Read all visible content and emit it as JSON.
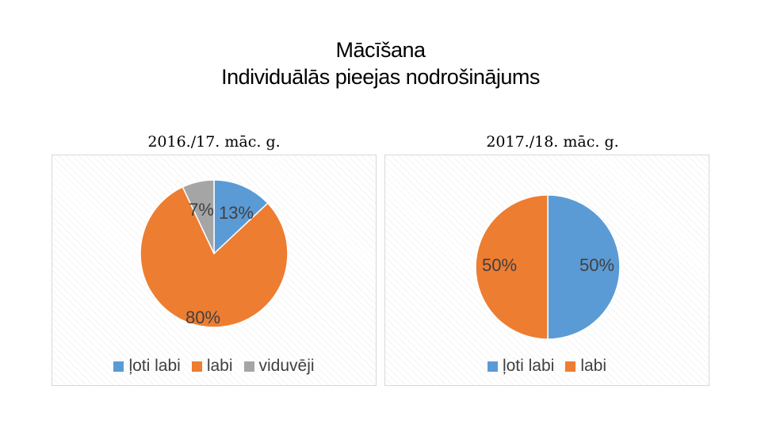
{
  "slide": {
    "title_line1": "Mācīšana",
    "title_line2": "Individuālās pieejas nodrošinājums"
  },
  "chart_data": [
    {
      "type": "pie",
      "title": "2016./17. māc. g.",
      "categories": [
        "ļoti labi",
        "labi",
        "viduvēji"
      ],
      "values": [
        13,
        80,
        7
      ],
      "value_labels": [
        "13%",
        "80%",
        "7%"
      ],
      "colors": [
        "#5b9bd5",
        "#ed7d31",
        "#a5a5a5"
      ],
      "legend": "bottom"
    },
    {
      "type": "pie",
      "title": "2017./18. māc. g.",
      "categories": [
        "ļoti labi",
        "labi"
      ],
      "values": [
        50,
        50
      ],
      "value_labels": [
        "50%",
        "50%"
      ],
      "colors": [
        "#5b9bd5",
        "#ed7d31"
      ],
      "legend": "bottom"
    }
  ]
}
